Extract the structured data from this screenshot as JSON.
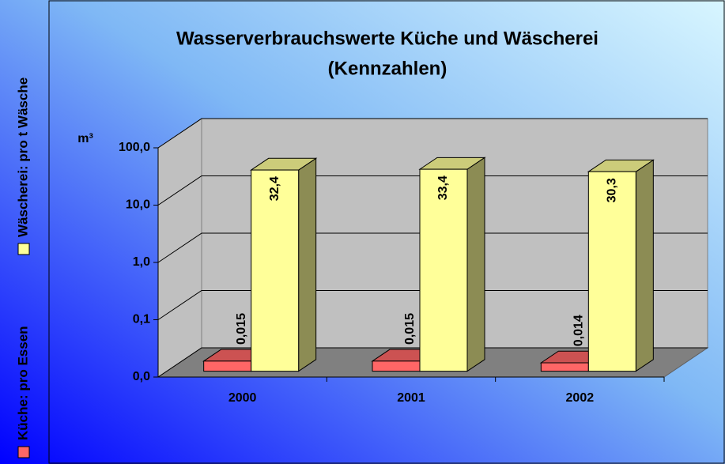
{
  "chart_data": {
    "type": "bar3d",
    "title": "Wasserverbrauchswerte Küche und Wäscherei",
    "subtitle": "(Kennzahlen)",
    "y_label": "m³",
    "categories": [
      "2000",
      "2001",
      "2002"
    ],
    "series": [
      {
        "name": "Küche: pro Essen",
        "color": "#ff6666",
        "values": [
          0.015,
          0.015,
          0.014
        ],
        "value_labels": [
          "0,015",
          "0,015",
          "0,014"
        ]
      },
      {
        "name": "Wäscherei: pro t Wäsche",
        "color": "#ffff99",
        "values": [
          32.4,
          33.4,
          30.3
        ],
        "value_labels": [
          "32,4",
          "33,4",
          "30,3"
        ]
      }
    ],
    "ylim": [
      0.01,
      100
    ],
    "log_scale": true,
    "yticks": [
      {
        "value": 0.01,
        "label": "0,0"
      },
      {
        "value": 0.1,
        "label": "0,1"
      },
      {
        "value": 1,
        "label": "1,0"
      },
      {
        "value": 10,
        "label": "10,0"
      },
      {
        "value": 100,
        "label": "100,0"
      }
    ],
    "grid": true,
    "legend_position": "left"
  }
}
